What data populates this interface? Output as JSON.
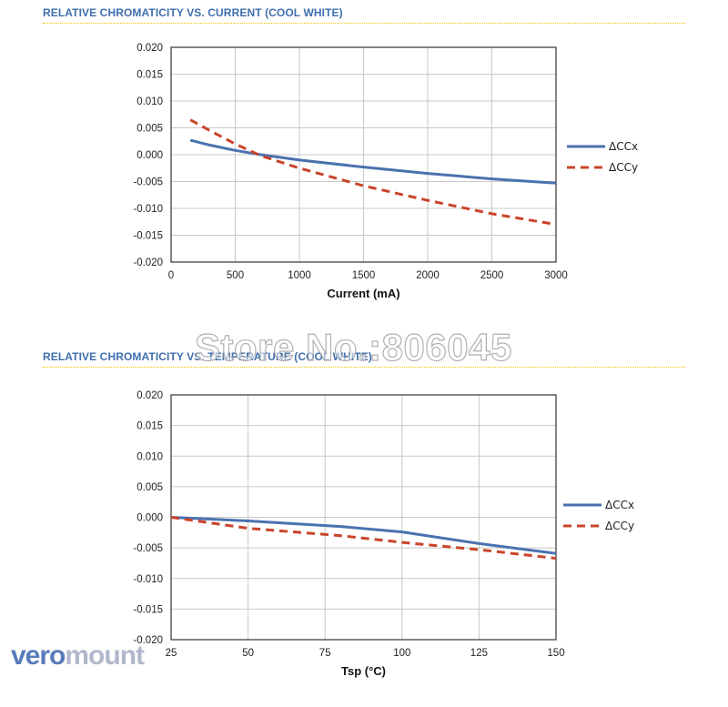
{
  "watermark": "Store No.:806045",
  "logo": {
    "part1": "vero",
    "part2": "mount"
  },
  "colors": {
    "ccx": "#4a72b0",
    "ccy": "#c9442a",
    "title": "#3f6fae",
    "dotline": "#f2c200"
  },
  "chart_data": [
    {
      "type": "line",
      "title": "RELATIVE CHROMATICITY VS. CURRENT (COOL WHITE)",
      "xlabel": "Current (mA)",
      "ylabel": "",
      "xlim": [
        0,
        3000
      ],
      "ylim": [
        -0.02,
        0.02
      ],
      "xticks": [
        "0",
        "500",
        "1000",
        "1500",
        "2000",
        "2500",
        "3000"
      ],
      "yticks": [
        "0.020",
        "0.015",
        "0.010",
        "0.005",
        "0.000",
        "-0.005",
        "-0.010",
        "-0.015",
        "-0.020"
      ],
      "grid": true,
      "legend": "right",
      "series": [
        {
          "name": "ΔCCx",
          "x": [
            150,
            300,
            500,
            700,
            1000,
            1500,
            2000,
            2500,
            3000
          ],
          "y": [
            0.0027,
            0.0018,
            0.0008,
            0.0,
            -0.001,
            -0.0023,
            -0.0035,
            -0.0045,
            -0.0053
          ]
        },
        {
          "name": "ΔCCy",
          "x": [
            150,
            300,
            500,
            700,
            1000,
            1500,
            2000,
            2500,
            3000
          ],
          "y": [
            0.0065,
            0.0045,
            0.002,
            -0.0002,
            -0.0025,
            -0.0058,
            -0.0085,
            -0.011,
            -0.013
          ]
        }
      ]
    },
    {
      "type": "line",
      "title": "RELATIVE CHROMATICITY VS. TEMPERATURE (COOL WHITE)",
      "xlabel": "Tsp (°C)",
      "ylabel": "",
      "xlim": [
        25,
        150
      ],
      "ylim": [
        -0.02,
        0.02
      ],
      "xticks": [
        "25",
        "50",
        "75",
        "100",
        "125",
        "150"
      ],
      "yticks": [
        "0.020",
        "0.015",
        "0.010",
        "0.005",
        "0.000",
        "-0.005",
        "-0.010",
        "-0.015",
        "-0.020"
      ],
      "grid": true,
      "legend": "right",
      "series": [
        {
          "name": "ΔCCx",
          "x": [
            25,
            50,
            80,
            100,
            125,
            150
          ],
          "y": [
            0.0,
            -0.0006,
            -0.0015,
            -0.0024,
            -0.0043,
            -0.0059
          ]
        },
        {
          "name": "ΔCCy",
          "x": [
            25,
            50,
            80,
            100,
            125,
            150
          ],
          "y": [
            0.0,
            -0.0018,
            -0.003,
            -0.0041,
            -0.0053,
            -0.0067
          ]
        }
      ]
    }
  ]
}
